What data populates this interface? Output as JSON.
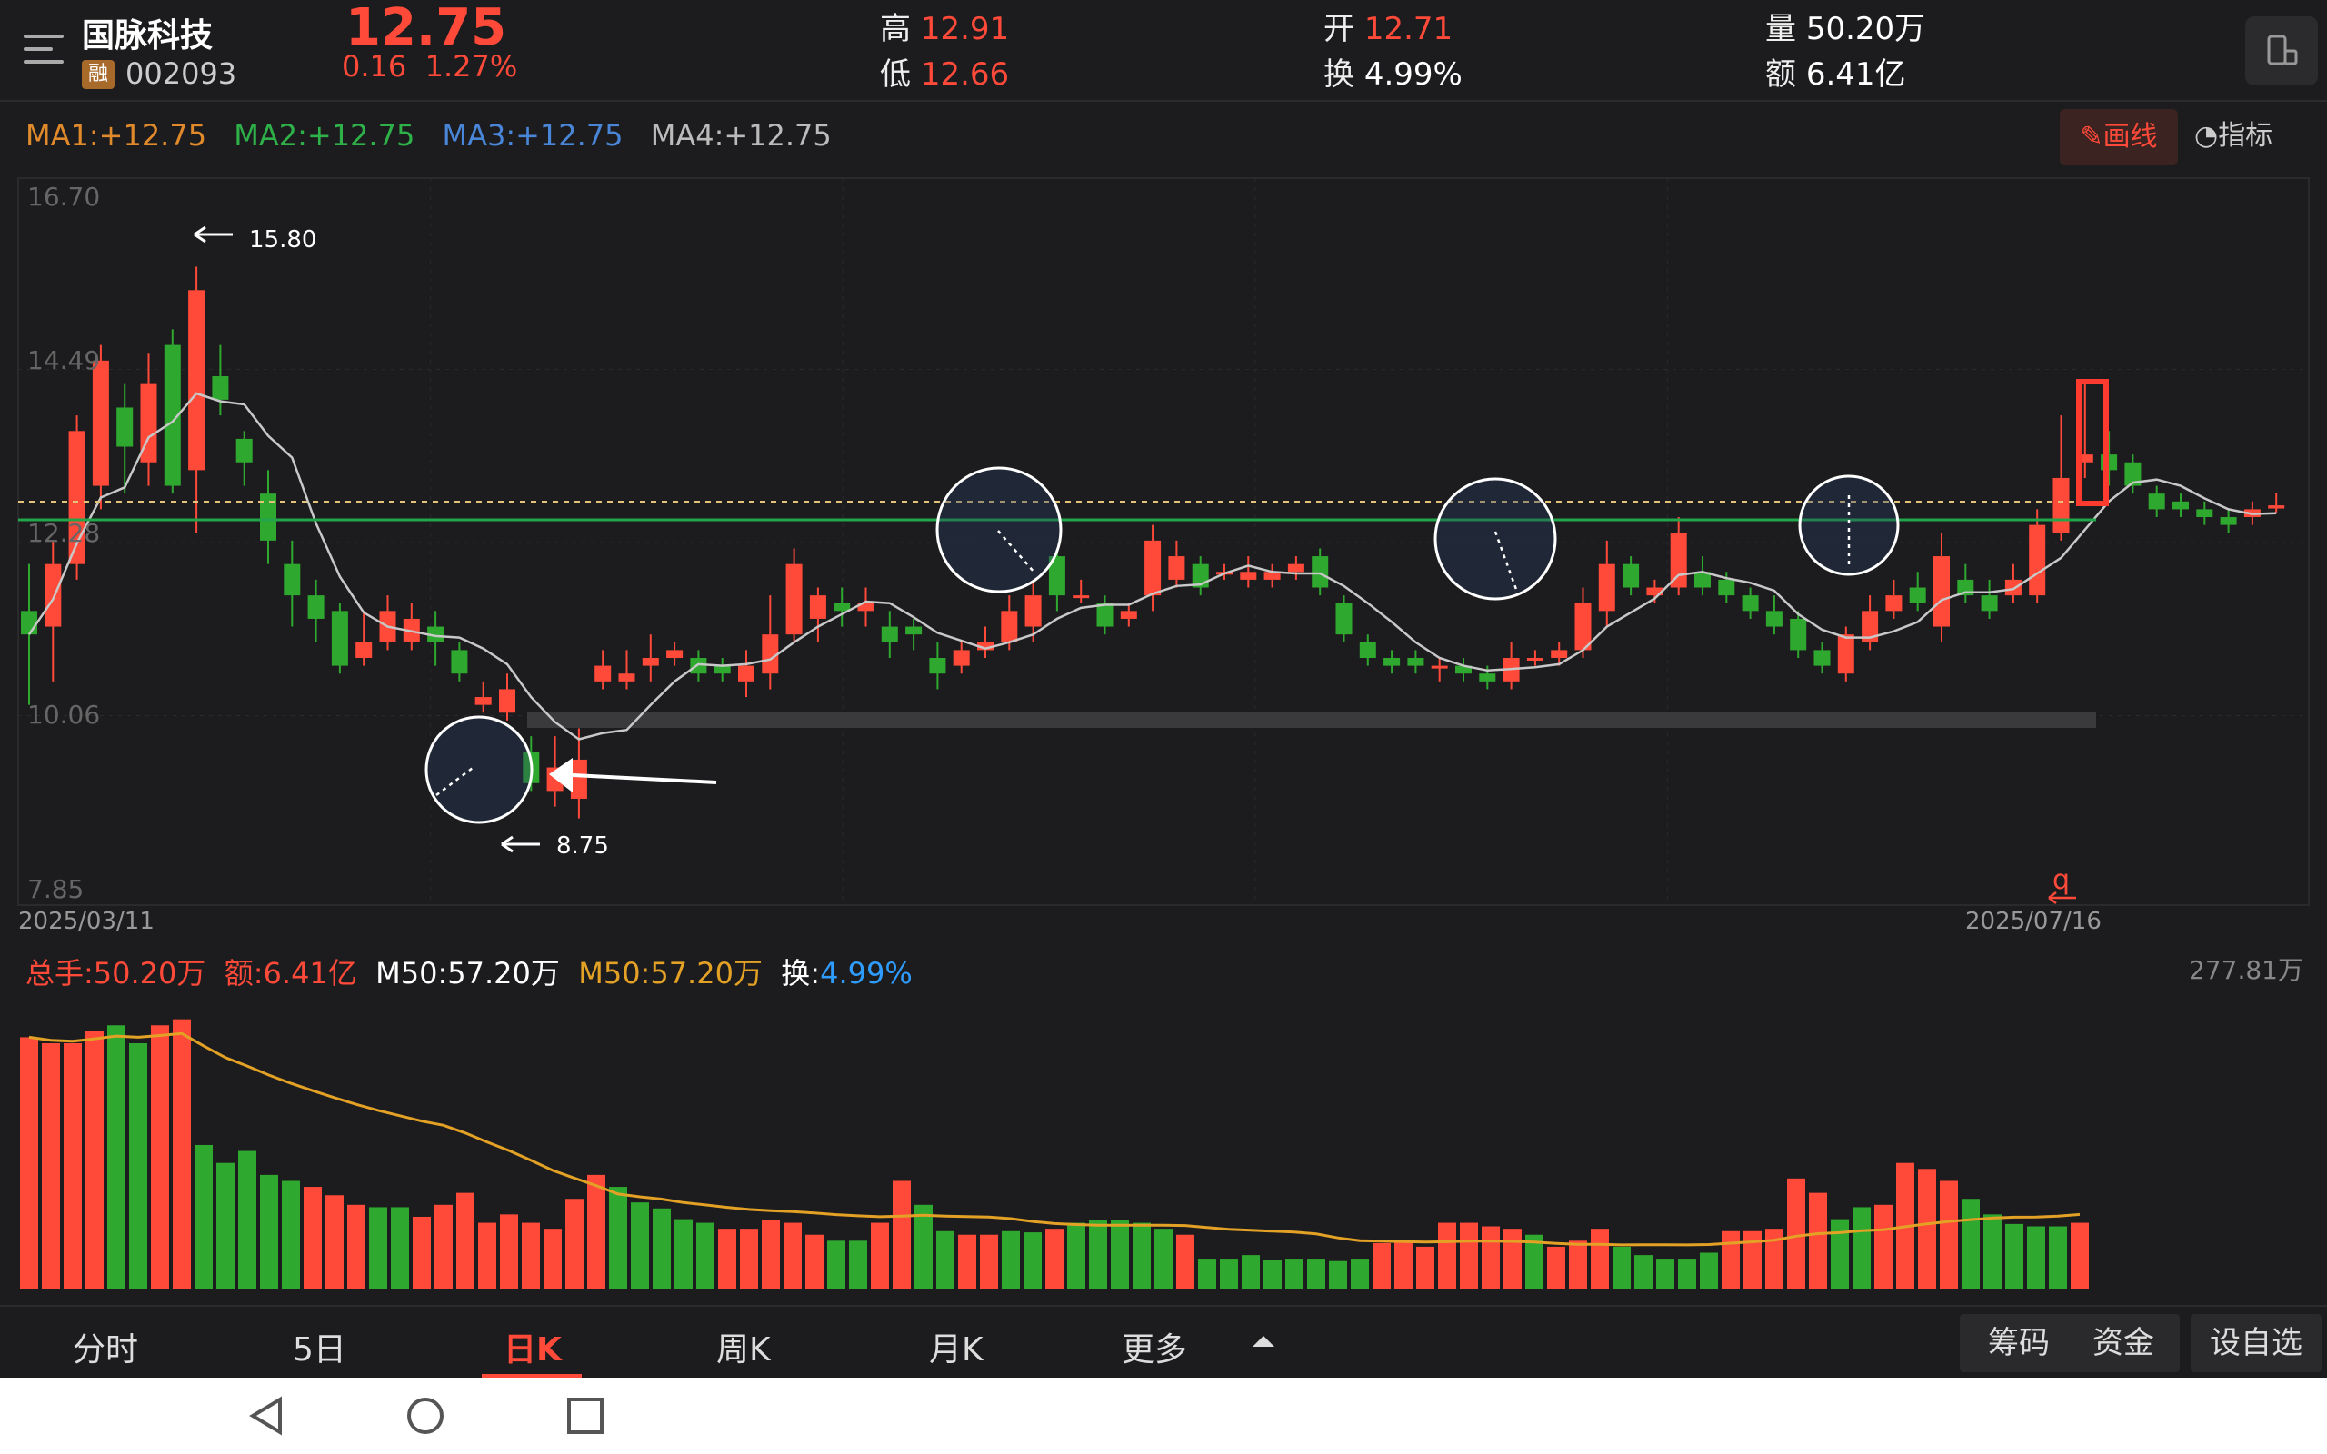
{
  "header": {
    "name": "国脉科技",
    "margin_badge": "融",
    "code": "002093",
    "price": "12.75",
    "change": "0.16",
    "change_pct": "1.27%",
    "high_label": "高",
    "high": "12.91",
    "low_label": "低",
    "low": "12.66",
    "open_label": "开",
    "open": "12.71",
    "turnover_label": "换",
    "turnover": "4.99%",
    "volume_label": "量",
    "volume": "50.20万",
    "amount_label": "额",
    "amount": "6.41亿"
  },
  "ma_row": {
    "ma1": "MA1:+12.75",
    "ma2": "MA2:+12.75",
    "ma3": "MA3:+12.75",
    "ma4": "MA4:+12.75"
  },
  "toolbar": {
    "draw_label": "画线",
    "indicator_label": "指标"
  },
  "price_axis": {
    "ticks": [
      "16.70",
      "14.49",
      "12.28",
      "10.06",
      "7.85"
    ],
    "start_date": "2025/03/11",
    "end_date": "2025/07/16"
  },
  "annotations": {
    "high_label": "15.80",
    "low_label": "8.75",
    "q_mark": "q"
  },
  "volume_panel": {
    "total": "总手:50.20万",
    "amount": "额:6.41亿",
    "m50_a": "M50:57.20万",
    "m50_b": "M50:57.20万",
    "turnover_label": "换:",
    "turnover_value": "4.99%",
    "max_label": "277.81万"
  },
  "tabs": [
    "分时",
    "5日",
    "日K",
    "周K",
    "月K",
    "更多"
  ],
  "active_tab": "日K",
  "right_buttons": [
    "筹码",
    "资金",
    "设自选"
  ],
  "colors": {
    "up": "#ff4a3a",
    "down": "#2fa82f",
    "ma1": "#e08a2c",
    "ma2": "#2fb14a",
    "ma3": "#4a86d8",
    "ma4": "#bbbbbb",
    "vol_ma": "#e3a125",
    "support_line": "#22a64a"
  },
  "chart_data": {
    "type": "candlestick",
    "x_start": "2025/03/11",
    "x_end": "2025/07/16",
    "ylim": [
      7.85,
      16.7
    ],
    "horizontal_lines": [
      12.4,
      12.6
    ],
    "candles": [
      [
        11.4,
        11.1,
        12.0,
        10.2
      ],
      [
        11.2,
        12.0,
        12.3,
        10.5
      ],
      [
        12.0,
        13.7,
        13.9,
        11.8
      ],
      [
        13.0,
        14.6,
        14.8,
        12.7
      ],
      [
        14.0,
        13.5,
        14.3,
        12.9
      ],
      [
        13.3,
        14.3,
        14.7,
        13.0
      ],
      [
        14.8,
        13.0,
        15.0,
        12.9
      ],
      [
        13.2,
        15.5,
        15.8,
        12.4
      ],
      [
        14.4,
        14.1,
        14.8,
        13.9
      ],
      [
        13.6,
        13.3,
        13.7,
        13.0
      ],
      [
        12.9,
        12.3,
        13.2,
        12.0
      ],
      [
        12.0,
        11.6,
        12.3,
        11.2
      ],
      [
        11.6,
        11.3,
        11.8,
        11.0
      ],
      [
        11.4,
        10.7,
        11.5,
        10.6
      ],
      [
        10.8,
        11.0,
        11.4,
        10.7
      ],
      [
        11.0,
        11.4,
        11.6,
        10.9
      ],
      [
        11.0,
        11.3,
        11.5,
        10.9
      ],
      [
        11.2,
        11.0,
        11.4,
        10.7
      ],
      [
        10.9,
        10.6,
        11.0,
        10.5
      ],
      [
        10.2,
        10.3,
        10.5,
        10.1
      ],
      [
        10.1,
        10.4,
        10.6,
        10.0
      ],
      [
        9.6,
        9.2,
        9.8,
        9.1
      ],
      [
        9.1,
        9.4,
        9.8,
        8.9
      ],
      [
        9.0,
        9.5,
        9.9,
        8.75
      ],
      [
        10.5,
        10.7,
        10.9,
        10.4
      ],
      [
        10.5,
        10.6,
        10.9,
        10.4
      ],
      [
        10.7,
        10.8,
        11.1,
        10.5
      ],
      [
        10.8,
        10.9,
        11.0,
        10.7
      ],
      [
        10.8,
        10.6,
        10.9,
        10.5
      ],
      [
        10.7,
        10.6,
        10.8,
        10.5
      ],
      [
        10.5,
        10.7,
        10.9,
        10.3
      ],
      [
        10.6,
        11.1,
        11.6,
        10.4
      ],
      [
        11.1,
        12.0,
        12.2,
        11.0
      ],
      [
        11.3,
        11.6,
        11.7,
        11.0
      ],
      [
        11.5,
        11.4,
        11.7,
        11.2
      ],
      [
        11.4,
        11.5,
        11.7,
        11.2
      ],
      [
        11.2,
        11.0,
        11.4,
        10.8
      ],
      [
        11.2,
        11.1,
        11.3,
        10.9
      ],
      [
        10.8,
        10.6,
        11.0,
        10.4
      ],
      [
        10.7,
        10.9,
        11.0,
        10.6
      ],
      [
        10.9,
        11.0,
        11.2,
        10.8
      ],
      [
        11.0,
        11.4,
        11.6,
        10.9
      ],
      [
        11.2,
        11.6,
        11.8,
        11.0
      ],
      [
        12.1,
        11.6,
        12.2,
        11.4
      ],
      [
        11.6,
        11.6,
        11.8,
        11.5
      ],
      [
        11.5,
        11.2,
        11.6,
        11.1
      ],
      [
        11.3,
        11.4,
        11.5,
        11.2
      ],
      [
        11.6,
        12.3,
        12.5,
        11.4
      ],
      [
        11.8,
        12.1,
        12.3,
        11.7
      ],
      [
        12.0,
        11.7,
        12.1,
        11.6
      ],
      [
        11.9,
        11.9,
        12.0,
        11.8
      ],
      [
        11.8,
        11.9,
        12.1,
        11.7
      ],
      [
        11.8,
        11.9,
        12.0,
        11.7
      ],
      [
        11.9,
        12.0,
        12.1,
        11.8
      ],
      [
        12.1,
        11.7,
        12.2,
        11.6
      ],
      [
        11.5,
        11.1,
        11.6,
        11.0
      ],
      [
        11.0,
        10.8,
        11.1,
        10.7
      ],
      [
        10.8,
        10.7,
        10.9,
        10.6
      ],
      [
        10.8,
        10.7,
        10.9,
        10.6
      ],
      [
        10.7,
        10.7,
        10.8,
        10.5
      ],
      [
        10.7,
        10.6,
        10.8,
        10.5
      ],
      [
        10.6,
        10.5,
        10.7,
        10.4
      ],
      [
        10.5,
        10.8,
        11.0,
        10.4
      ],
      [
        10.8,
        10.8,
        10.9,
        10.7
      ],
      [
        10.8,
        10.9,
        11.0,
        10.7
      ],
      [
        10.9,
        11.5,
        11.7,
        10.8
      ],
      [
        11.4,
        12.0,
        12.3,
        11.2
      ],
      [
        12.0,
        11.7,
        12.1,
        11.6
      ],
      [
        11.6,
        11.7,
        11.8,
        11.5
      ],
      [
        11.7,
        12.4,
        12.6,
        11.6
      ],
      [
        11.9,
        11.7,
        12.1,
        11.6
      ],
      [
        11.8,
        11.6,
        11.9,
        11.5
      ],
      [
        11.6,
        11.4,
        11.7,
        11.3
      ],
      [
        11.4,
        11.2,
        11.6,
        11.1
      ],
      [
        11.3,
        10.9,
        11.4,
        10.8
      ],
      [
        10.9,
        10.7,
        11.0,
        10.6
      ],
      [
        10.6,
        11.1,
        11.2,
        10.5
      ],
      [
        11.0,
        11.4,
        11.6,
        10.9
      ],
      [
        11.4,
        11.6,
        11.8,
        11.3
      ],
      [
        11.7,
        11.5,
        11.9,
        11.4
      ],
      [
        11.2,
        12.1,
        12.4,
        11.0
      ],
      [
        11.8,
        11.6,
        12.0,
        11.5
      ],
      [
        11.6,
        11.4,
        11.8,
        11.3
      ],
      [
        11.6,
        11.8,
        12.0,
        11.5
      ],
      [
        11.6,
        12.5,
        12.7,
        11.5
      ],
      [
        12.4,
        13.1,
        13.9,
        12.3
      ],
      [
        13.3,
        13.4,
        14.3,
        13.1
      ],
      [
        13.4,
        13.2,
        13.7,
        13.0
      ],
      [
        13.3,
        13.0,
        13.4,
        12.9
      ],
      [
        12.9,
        12.7,
        13.0,
        12.6
      ],
      [
        12.8,
        12.7,
        12.9,
        12.6
      ],
      [
        12.7,
        12.6,
        12.8,
        12.5
      ],
      [
        12.6,
        12.5,
        12.7,
        12.4
      ],
      [
        12.6,
        12.7,
        12.8,
        12.5
      ],
      [
        12.71,
        12.75,
        12.91,
        12.66
      ]
    ],
    "volume": [
      [
        2.1,
        1
      ],
      [
        2.05,
        1
      ],
      [
        2.05,
        1
      ],
      [
        2.15,
        1
      ],
      [
        2.2,
        0
      ],
      [
        2.05,
        0
      ],
      [
        2.2,
        1
      ],
      [
        2.25,
        1
      ],
      [
        1.2,
        0
      ],
      [
        1.05,
        0
      ],
      [
        1.15,
        0
      ],
      [
        0.95,
        0
      ],
      [
        0.9,
        0
      ],
      [
        0.85,
        1
      ],
      [
        0.78,
        1
      ],
      [
        0.7,
        1
      ],
      [
        0.68,
        0
      ],
      [
        0.68,
        0
      ],
      [
        0.6,
        1
      ],
      [
        0.7,
        1
      ],
      [
        0.8,
        1
      ],
      [
        0.55,
        1
      ],
      [
        0.62,
        1
      ],
      [
        0.55,
        1
      ],
      [
        0.5,
        1
      ],
      [
        0.75,
        1
      ],
      [
        0.95,
        1
      ],
      [
        0.85,
        0
      ],
      [
        0.72,
        0
      ],
      [
        0.67,
        0
      ],
      [
        0.58,
        0
      ],
      [
        0.55,
        0
      ],
      [
        0.5,
        1
      ],
      [
        0.5,
        1
      ],
      [
        0.57,
        1
      ],
      [
        0.55,
        1
      ],
      [
        0.45,
        1
      ],
      [
        0.4,
        0
      ],
      [
        0.4,
        0
      ],
      [
        0.55,
        1
      ],
      [
        0.9,
        1
      ],
      [
        0.7,
        0
      ],
      [
        0.48,
        0
      ],
      [
        0.45,
        1
      ],
      [
        0.45,
        1
      ],
      [
        0.48,
        0
      ],
      [
        0.47,
        0
      ],
      [
        0.5,
        1
      ],
      [
        0.55,
        0
      ],
      [
        0.57,
        0
      ],
      [
        0.57,
        0
      ],
      [
        0.55,
        0
      ],
      [
        0.5,
        0
      ],
      [
        0.45,
        1
      ],
      [
        0.25,
        0
      ],
      [
        0.25,
        0
      ],
      [
        0.28,
        0
      ],
      [
        0.24,
        0
      ],
      [
        0.25,
        0
      ],
      [
        0.25,
        0
      ],
      [
        0.23,
        0
      ],
      [
        0.25,
        0
      ],
      [
        0.38,
        1
      ],
      [
        0.4,
        1
      ],
      [
        0.35,
        1
      ],
      [
        0.55,
        1
      ],
      [
        0.55,
        1
      ],
      [
        0.52,
        1
      ],
      [
        0.5,
        1
      ],
      [
        0.45,
        0
      ],
      [
        0.35,
        1
      ],
      [
        0.4,
        1
      ],
      [
        0.5,
        1
      ],
      [
        0.35,
        0
      ],
      [
        0.28,
        0
      ],
      [
        0.25,
        0
      ],
      [
        0.25,
        0
      ],
      [
        0.3,
        0
      ],
      [
        0.48,
        1
      ],
      [
        0.48,
        1
      ],
      [
        0.5,
        1
      ],
      [
        0.92,
        1
      ],
      [
        0.8,
        1
      ],
      [
        0.58,
        0
      ],
      [
        0.68,
        0
      ],
      [
        0.7,
        1
      ],
      [
        1.05,
        1
      ],
      [
        1.0,
        1
      ],
      [
        0.9,
        1
      ],
      [
        0.75,
        0
      ],
      [
        0.62,
        0
      ],
      [
        0.54,
        0
      ],
      [
        0.52,
        0
      ],
      [
        0.52,
        0
      ],
      [
        0.55,
        1
      ]
    ]
  }
}
